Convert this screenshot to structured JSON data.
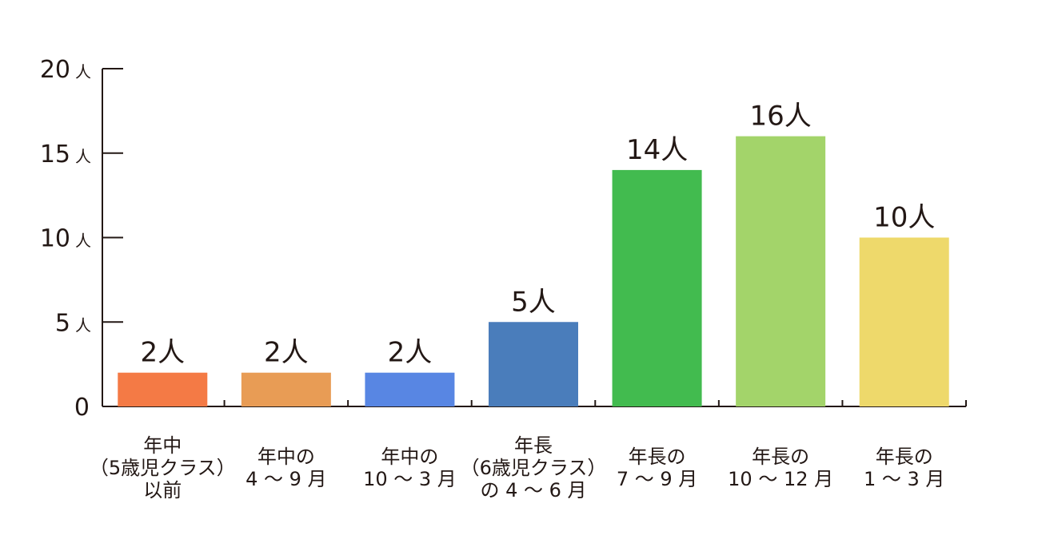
{
  "chart_data": {
    "type": "bar",
    "title": "",
    "xlabel": "",
    "ylabel": "",
    "ylim": [
      0,
      20
    ],
    "yticks": [
      0,
      5,
      10,
      15,
      20
    ],
    "ytick_labels": [
      "0",
      "5人",
      "10人",
      "15人",
      "20人"
    ],
    "ytick_unit": "人",
    "grid": false,
    "categories": [
      [
        "年中",
        "（5歳児クラス）",
        "以前"
      ],
      [
        "年中の",
        "4 〜 9 月"
      ],
      [
        "年中の",
        "10 〜 3 月"
      ],
      [
        "年長",
        "（6歳児クラス）",
        "の 4 〜 6 月"
      ],
      [
        "年長の",
        "7 〜 9 月"
      ],
      [
        "年長の",
        "10 〜 12 月"
      ],
      [
        "年長の",
        "1 〜 3 月"
      ]
    ],
    "values": [
      2,
      2,
      2,
      5,
      14,
      16,
      10
    ],
    "data_labels": [
      "2人",
      "2人",
      "2人",
      "5人",
      "14人",
      "16人",
      "10人"
    ],
    "colors": [
      "#f47a45",
      "#e89c55",
      "#5886e3",
      "#4a7dbb",
      "#42bb4f",
      "#a3d46a",
      "#eed96b"
    ],
    "axis_color": "#231815"
  }
}
